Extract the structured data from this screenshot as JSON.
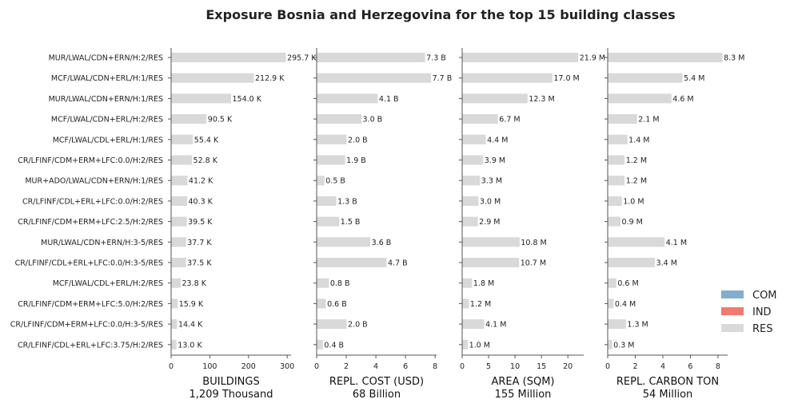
{
  "chart_data": {
    "type": "bar",
    "title": "Exposure Bosnia and Herzegovina for the top 15 building classes",
    "categories": [
      "MUR/LWAL/CDN+ERN/H:2/RES",
      "MCF/LWAL/CDN+ERL/H:1/RES",
      "MUR/LWAL/CDN+ERN/H:1/RES",
      "MCF/LWAL/CDN+ERL/H:2/RES",
      "MCF/LWAL/CDL+ERL/H:1/RES",
      "CR/LFINF/CDM+ERM+LFC:0.0/H:2/RES",
      "MUR+ADO/LWAL/CDN+ERN/H:1/RES",
      "CR/LFINF/CDL+ERL+LFC:0.0/H:2/RES",
      "CR/LFINF/CDM+ERM+LFC:2.5/H:2/RES",
      "MUR/LWAL/CDN+ERN/H:3-5/RES",
      "CR/LFINF/CDL+ERL+LFC:0.0/H:3-5/RES",
      "MCF/LWAL/CDL+ERL/H:2/RES",
      "CR/LFINF/CDM+ERM+LFC:5.0/H:2/RES",
      "CR/LFINF/CDM+ERM+LFC:0.0/H:3-5/RES",
      "CR/LFINF/CDL+ERL+LFC:3.75/H:2/RES"
    ],
    "panels": [
      {
        "xlabel": "BUILDINGS",
        "subtitle": "1,209 Thousand",
        "xlim": [
          0,
          310
        ],
        "ticks": [
          0,
          100,
          200,
          300
        ],
        "values": [
          295.7,
          212.9,
          154.0,
          90.5,
          55.4,
          52.8,
          41.2,
          40.3,
          39.5,
          37.7,
          37.5,
          23.8,
          15.9,
          14.4,
          13.0
        ],
        "labels": [
          "295.7 K",
          "212.9 K",
          "154.0 K",
          "90.5 K",
          "55.4 K",
          "52.8 K",
          "41.2 K",
          "40.3 K",
          "39.5 K",
          "37.7 K",
          "37.5 K",
          "23.8 K",
          "15.9 K",
          "14.4 K",
          "13.0 K"
        ]
      },
      {
        "xlabel": "REPL. COST (USD)",
        "subtitle": "68 Billion",
        "xlim": [
          0,
          8.1
        ],
        "ticks": [
          0,
          2,
          4,
          6,
          8
        ],
        "values": [
          7.3,
          7.7,
          4.1,
          3.0,
          2.0,
          1.9,
          0.5,
          1.3,
          1.5,
          3.6,
          4.7,
          0.8,
          0.6,
          2.0,
          0.4
        ],
        "labels": [
          "7.3 B",
          "7.7 B",
          "4.1 B",
          "3.0 B",
          "2.0 B",
          "1.9 B",
          "0.5 B",
          "1.3 B",
          "1.5 B",
          "3.6 B",
          "4.7 B",
          "0.8 B",
          "0.6 B",
          "2.0 B",
          "0.4 B"
        ]
      },
      {
        "xlabel": "AREA (SQM)",
        "subtitle": "155 Million",
        "xlim": [
          0,
          23
        ],
        "ticks": [
          0,
          5,
          10,
          15,
          20
        ],
        "values": [
          21.9,
          17.0,
          12.3,
          6.7,
          4.4,
          3.9,
          3.3,
          3.0,
          2.9,
          10.8,
          10.7,
          1.8,
          1.2,
          4.1,
          1.0
        ],
        "labels": [
          "21.9 M",
          "17.0 M",
          "12.3 M",
          "6.7 M",
          "4.4 M",
          "3.9 M",
          "3.3 M",
          "3.0 M",
          "2.9 M",
          "10.8 M",
          "10.7 M",
          "1.8 M",
          "1.2 M",
          "4.1 M",
          "1.0 M"
        ]
      },
      {
        "xlabel": "REPL. CARBON TON",
        "subtitle": "54 Million",
        "xlim": [
          0,
          8.7
        ],
        "ticks": [
          0,
          2,
          4,
          6,
          8
        ],
        "values": [
          8.3,
          5.4,
          4.6,
          2.1,
          1.4,
          1.2,
          1.2,
          1.0,
          0.9,
          4.1,
          3.4,
          0.6,
          0.4,
          1.3,
          0.3
        ],
        "labels": [
          "8.3 M",
          "5.4 M",
          "4.6 M",
          "2.1 M",
          "1.4 M",
          "1.2 M",
          "1.2 M",
          "1.0 M",
          "0.9 M",
          "4.1 M",
          "3.4 M",
          "0.6 M",
          "0.4 M",
          "1.3 M",
          "0.3 M"
        ]
      }
    ],
    "legend": {
      "placement": "right",
      "entries": [
        {
          "name": "COM",
          "color": "#80aecf"
        },
        {
          "name": "IND",
          "color": "#f07b6e"
        },
        {
          "name": "RES",
          "color": "#d9d9d9"
        }
      ]
    },
    "bar_color": "#d9d9d9",
    "grid": false
  }
}
